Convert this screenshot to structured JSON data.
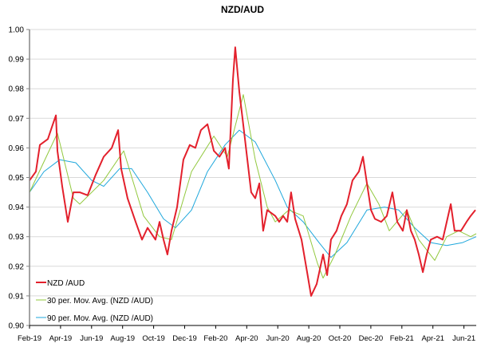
{
  "chart_data": {
    "type": "line",
    "title": "NZD/AUD",
    "xlabel": "",
    "ylabel": "",
    "x_unit": "months since Feb-19",
    "xlim": [
      0,
      28.8
    ],
    "ylim": [
      0.9,
      1.0
    ],
    "yticks": [
      "0.90",
      "0.91",
      "0.92",
      "0.93",
      "0.94",
      "0.95",
      "0.96",
      "0.97",
      "0.98",
      "0.99",
      "1.00"
    ],
    "xticks": [
      {
        "x": 0,
        "label": "Feb-19"
      },
      {
        "x": 2,
        "label": "Apr-19"
      },
      {
        "x": 4,
        "label": "Jun-19"
      },
      {
        "x": 6,
        "label": "Aug-19"
      },
      {
        "x": 8,
        "label": "Oct-19"
      },
      {
        "x": 10,
        "label": "Dec-19"
      },
      {
        "x": 12,
        "label": "Feb-20"
      },
      {
        "x": 14,
        "label": "Apr-20"
      },
      {
        "x": 16,
        "label": "Jun-20"
      },
      {
        "x": 18,
        "label": "Aug-20"
      },
      {
        "x": 20,
        "label": "Oct-20"
      },
      {
        "x": 22,
        "label": "Dec-20"
      },
      {
        "x": 24,
        "label": "Feb-21"
      },
      {
        "x": 26,
        "label": "Apr-21"
      },
      {
        "x": 28,
        "label": "Jun-21"
      }
    ],
    "grid": true,
    "legend_position": "bottom-left",
    "series": [
      {
        "name": "NZD /AUD",
        "color": "#e3202c",
        "width": 2,
        "x": [
          0,
          0.41,
          0.67,
          1.18,
          1.44,
          1.7,
          1.8,
          2.11,
          2.47,
          2.83,
          3.24,
          3.75,
          4.27,
          4.78,
          5.3,
          5.71,
          5.91,
          6.32,
          6.84,
          7.25,
          7.61,
          8.12,
          8.38,
          8.64,
          8.89,
          9.15,
          9.51,
          9.92,
          10.33,
          10.69,
          11.05,
          11.47,
          11.88,
          12.24,
          12.6,
          12.85,
          13.11,
          13.26,
          13.52,
          13.73,
          14.04,
          14.29,
          14.55,
          14.81,
          15.06,
          15.32,
          15.84,
          16.09,
          16.35,
          16.61,
          16.86,
          17.12,
          17.53,
          17.89,
          18.15,
          18.51,
          18.92,
          19.18,
          19.43,
          19.79,
          20.1,
          20.46,
          20.82,
          21.23,
          21.49,
          21.75,
          22.01,
          22.26,
          22.67,
          23.03,
          23.39,
          23.7,
          24.06,
          24.32,
          24.58,
          24.83,
          25.09,
          25.35,
          25.6,
          25.86,
          26.27,
          26.63,
          27.15,
          27.4,
          27.81,
          28.17,
          28.43,
          28.74
        ],
        "y": [
          0.949,
          0.952,
          0.961,
          0.963,
          0.967,
          0.971,
          0.959,
          0.947,
          0.935,
          0.945,
          0.945,
          0.944,
          0.951,
          0.957,
          0.96,
          0.966,
          0.953,
          0.943,
          0.935,
          0.929,
          0.933,
          0.929,
          0.935,
          0.929,
          0.924,
          0.932,
          0.94,
          0.956,
          0.961,
          0.96,
          0.966,
          0.968,
          0.959,
          0.957,
          0.96,
          0.953,
          0.983,
          0.994,
          0.979,
          0.97,
          0.956,
          0.945,
          0.943,
          0.948,
          0.932,
          0.939,
          0.937,
          0.935,
          0.937,
          0.935,
          0.945,
          0.936,
          0.929,
          0.918,
          0.91,
          0.914,
          0.924,
          0.917,
          0.929,
          0.932,
          0.937,
          0.941,
          0.949,
          0.952,
          0.957,
          0.948,
          0.939,
          0.936,
          0.935,
          0.937,
          0.945,
          0.935,
          0.932,
          0.939,
          0.932,
          0.929,
          0.924,
          0.918,
          0.924,
          0.929,
          0.93,
          0.929,
          0.941,
          0.932,
          0.932,
          0.935,
          0.937,
          0.939
        ]
      },
      {
        "name": "30 per. Mov. Avg. (NZD /AUD)",
        "color": "#92c83e",
        "width": 1,
        "x": [
          0,
          1.8,
          2.83,
          3.24,
          4.78,
          6.07,
          7.35,
          8.38,
          9.15,
          10.44,
          11.88,
          12.75,
          13.78,
          14.55,
          15.32,
          15.84,
          16.71,
          17.64,
          18.56,
          18.92,
          19.69,
          20.72,
          21.75,
          22.52,
          23.19,
          24.32,
          25.09,
          26.12,
          26.89,
          27.66,
          28.43,
          28.79
        ],
        "y": [
          0.945,
          0.965,
          0.943,
          0.941,
          0.949,
          0.959,
          0.937,
          0.93,
          0.929,
          0.952,
          0.964,
          0.957,
          0.978,
          0.956,
          0.94,
          0.935,
          0.939,
          0.937,
          0.921,
          0.916,
          0.924,
          0.937,
          0.948,
          0.941,
          0.932,
          0.939,
          0.929,
          0.922,
          0.93,
          0.932,
          0.93,
          0.931
        ]
      },
      {
        "name": "90 per. Mov. Avg. (NZD /AUD)",
        "color": "#1ea7dc",
        "width": 1,
        "x": [
          0,
          0.93,
          1.95,
          2.98,
          4.01,
          4.78,
          5.81,
          6.58,
          7.61,
          8.64,
          9.41,
          10.44,
          11.47,
          12.6,
          13.52,
          14.55,
          15.84,
          16.61,
          17.64,
          18.66,
          19.43,
          20.46,
          21.75,
          22.88,
          23.8,
          24.83,
          25.86,
          26.89,
          27.92,
          28.79
        ],
        "y": [
          0.945,
          0.952,
          0.956,
          0.955,
          0.949,
          0.947,
          0.953,
          0.953,
          0.945,
          0.936,
          0.933,
          0.939,
          0.952,
          0.961,
          0.966,
          0.962,
          0.949,
          0.94,
          0.935,
          0.928,
          0.923,
          0.928,
          0.939,
          0.94,
          0.939,
          0.933,
          0.928,
          0.927,
          0.928,
          0.93
        ]
      }
    ]
  }
}
